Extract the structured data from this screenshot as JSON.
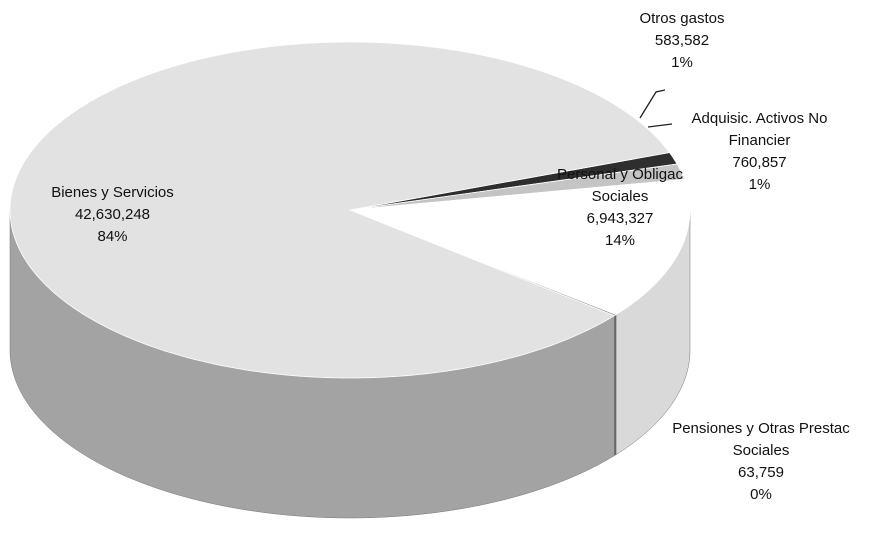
{
  "chart_data": {
    "type": "pie",
    "categories": [
      "Otros gastos",
      "Adquisic. Activos No Financier",
      "Personal y Obligac Sociales",
      "Pensiones y Otras Prestac Sociales",
      "Bienes y Servicios"
    ],
    "values": [
      583582,
      760857,
      6943327,
      63759,
      42630248
    ],
    "value_labels": [
      "583,582",
      "760,857",
      "6,943,327",
      "63,759",
      "42,630,248"
    ],
    "percentages": [
      1,
      1,
      14,
      0,
      84
    ],
    "percent_labels": [
      "1%",
      "1%",
      "14%",
      "0%",
      "84%"
    ],
    "colors": [
      "#2e2e2e",
      "#c4c4c4",
      "#ffffff",
      "#8a8a8a",
      "#e2e2e2"
    ]
  }
}
